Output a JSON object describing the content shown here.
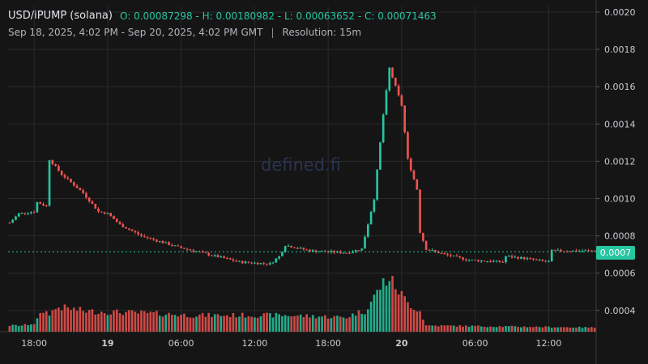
{
  "header": {
    "symbol": "USD/iPUMP (solana)",
    "ohlc": "O: 0.00087298 - H: 0.00180982 - L: 0.00063652 - C: 0.00071463",
    "range": "Sep 18, 2025, 4:02 PM - Sep 20, 2025, 4:02 PM GMT",
    "separator": "|",
    "resolution": "Resolution: 15m"
  },
  "watermark": "defined.fi",
  "current_price_label": "0.0007",
  "colors": {
    "up": "#26c6a0",
    "down": "#ef5350",
    "background": "#151515",
    "grid": "#2b2b2b"
  },
  "chart_data": {
    "type": "candlestick",
    "resolution": "15m",
    "ylim": [
      0.0003,
      0.002
    ],
    "yticks": [
      0.0004,
      0.0006,
      0.0008,
      0.001,
      0.0012,
      0.0014,
      0.0016,
      0.0018,
      0.002
    ],
    "ytick_labels": [
      "0.0004",
      "0.0006",
      "0.0008",
      "0.0010",
      "0.0012",
      "0.0014",
      "0.0016",
      "0.0018",
      "0.0020"
    ],
    "xticks": [
      {
        "label": "18:00",
        "bold": false
      },
      {
        "label": "19",
        "bold": true
      },
      {
        "label": "06:00",
        "bold": false
      },
      {
        "label": "12:00",
        "bold": false
      },
      {
        "label": "18:00",
        "bold": false
      },
      {
        "label": "20",
        "bold": true
      },
      {
        "label": "06:00",
        "bold": false
      },
      {
        "label": "12:00",
        "bold": false
      }
    ],
    "current_price": 0.00071463,
    "ohlc": {
      "open": 0.00087298,
      "high": 0.00180982,
      "low": 0.00063652,
      "close": 0.00071463
    },
    "grid": true,
    "price_path": [
      [
        0,
        0.00087
      ],
      [
        3,
        0.00092
      ],
      [
        8,
        0.00093
      ],
      [
        9,
        0.00098
      ],
      [
        12,
        0.00096
      ],
      [
        13,
        0.00121
      ],
      [
        17,
        0.00113
      ],
      [
        24,
        0.00103
      ],
      [
        29,
        0.00093
      ],
      [
        32,
        0.00092
      ],
      [
        36,
        0.00086
      ],
      [
        43,
        0.0008
      ],
      [
        55,
        0.00074
      ],
      [
        75,
        0.00066
      ],
      [
        85,
        0.00065
      ],
      [
        88,
        0.00069
      ],
      [
        90,
        0.00075
      ],
      [
        98,
        0.00072
      ],
      [
        110,
        0.00071
      ],
      [
        115,
        0.00073
      ],
      [
        119,
        0.001
      ],
      [
        122,
        0.00145
      ],
      [
        124,
        0.0017
      ],
      [
        126,
        0.0016
      ],
      [
        128,
        0.0015
      ],
      [
        130,
        0.00121
      ],
      [
        133,
        0.00105
      ],
      [
        134,
        0.00082
      ],
      [
        136,
        0.00073
      ],
      [
        142,
        0.0007
      ],
      [
        150,
        0.00067
      ],
      [
        161,
        0.00066
      ],
      [
        162,
        0.00069
      ],
      [
        168,
        0.00068
      ],
      [
        176,
        0.00066
      ],
      [
        177,
        0.00072
      ],
      [
        191,
        0.00072
      ]
    ],
    "volume_path": [
      [
        0,
        0.03
      ],
      [
        4,
        0.03
      ],
      [
        8,
        0.04
      ],
      [
        11,
        0.1
      ],
      [
        13,
        0.09
      ],
      [
        16,
        0.12
      ],
      [
        25,
        0.1
      ],
      [
        45,
        0.09
      ],
      [
        60,
        0.08
      ],
      [
        90,
        0.08
      ],
      [
        110,
        0.07
      ],
      [
        113,
        0.09
      ],
      [
        116,
        0.1
      ],
      [
        119,
        0.17
      ],
      [
        122,
        0.24
      ],
      [
        124,
        0.26
      ],
      [
        127,
        0.2
      ],
      [
        130,
        0.14
      ],
      [
        134,
        0.1
      ],
      [
        136,
        0.03
      ],
      [
        191,
        0.02
      ]
    ]
  }
}
